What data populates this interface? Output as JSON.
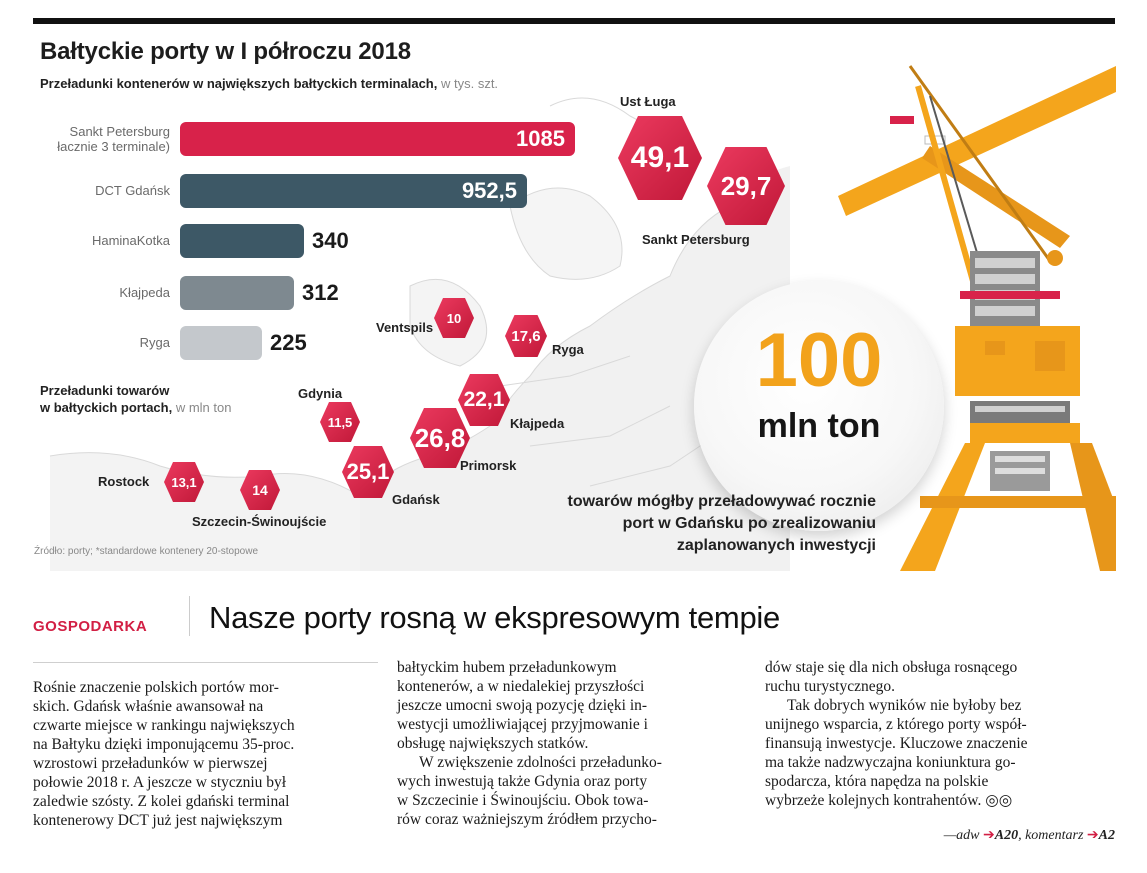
{
  "infographic": {
    "title": "Bałtyckie porty w I półroczu 2018",
    "subtitle": "Przeładunki kontenerów w największych bałtyckich terminalach,",
    "subtitle_unit": "w tys. szt.",
    "section2_line1": "Przeładunki towarów",
    "section2_line2": "w bałtyckich portach,",
    "section2_unit": "w mln ton",
    "source": "Źródło: porty; *standardowe kontenery 20-stopowe",
    "big_number": "100",
    "big_unit": "mln ton",
    "caption_lines": [
      "towarów mógłby przeładowywać rocznie",
      "port w Gdańsku po zrealizowaniu",
      "zaplanowanych inwestycji"
    ]
  },
  "chart_data": [
    {
      "type": "bar",
      "title": "Przeładunki kontenerów w największych bałtyckich terminalach",
      "unit": "w tys. szt.",
      "orientation": "horizontal",
      "categories": [
        "Sankt Petersburg (łącznie 3 terminale)",
        "DCT Gdańsk",
        "HaminaKotka",
        "Kłajpeda",
        "Ryga"
      ],
      "label_lines": [
        [
          "Sankt Petersburg",
          "łacznie 3 terminale)"
        ],
        [
          "DCT Gdańsk"
        ],
        [
          "HaminaKotka"
        ],
        [
          "Kłajpeda"
        ],
        [
          "Ryga"
        ]
      ],
      "values": [
        1085,
        952.5,
        340,
        312,
        225
      ],
      "value_labels": [
        "1085",
        "952,5",
        "340",
        "312",
        "225"
      ],
      "colors": [
        "#d8224a",
        "#3d5866",
        "#3d5866",
        "#7e8990",
        "#c4c8cc"
      ]
    },
    {
      "type": "map",
      "title": "Przeładunki towarów w bałtyckich portach",
      "unit": "w mln ton",
      "ports": [
        {
          "name": "Ust Ługa",
          "value": "49,1"
        },
        {
          "name": "Sankt Petersburg",
          "value": "29,7"
        },
        {
          "name": "Ventspils",
          "value": "10"
        },
        {
          "name": "Ryga",
          "value": "17,6"
        },
        {
          "name": "Kłajpeda",
          "value": "22,1"
        },
        {
          "name": "Primorsk",
          "value": "26,8"
        },
        {
          "name": "Gdynia",
          "value": "11,5"
        },
        {
          "name": "Gdańsk",
          "value": "25,1"
        },
        {
          "name": "Rostock",
          "value": "13,1"
        },
        {
          "name": "Szczecin-Świnoujście",
          "value": "14"
        }
      ]
    }
  ],
  "article": {
    "section": "GOSPODARKA",
    "headline": "Nasze porty rosną w ekspresowym tempie",
    "col1": [
      "Rośnie znaczenie polskich portów mor-",
      "skich. Gdańsk właśnie awansował na",
      "czwarte miejsce w rankingu największych",
      "na Bałtyku dzięki imponującemu 35-proc.",
      "wzrostowi przeładunków w pierwszej",
      "połowie 2018 r. A jeszcze w styczniu był",
      "zaledwie szósty. Z kolei gdański terminal",
      "kontenerowy DCT już jest największym"
    ],
    "col2a": [
      "bałtyckim hubem przeładunkowym",
      "kontenerów, a w niedalekiej przyszłości",
      "jeszcze umocni swoją pozycję dzięki in-",
      "westycji umożliwiającej przyjmowanie i",
      "obsługę największych statków."
    ],
    "col2b": [
      "W zwiększenie zdolności przeładunko-",
      "wych inwestują także Gdynia oraz porty",
      "w Szczecinie i Świnoujściu. Obok towa-",
      "rów coraz ważniejszym źródłem przycho-"
    ],
    "col3a": [
      "dów staje się dla nich obsługa rosnącego",
      "ruchu turystycznego."
    ],
    "col3b": [
      "Tak dobrych wyników nie byłoby bez",
      "unijnego wsparcia, z którego porty współ-",
      "finansują inwestycje. Kluczowe znaczenie",
      "ma także nadzwyczajna koniunktura go-",
      "spodarcza, która napędza na polskie",
      "wybrzeże kolejnych kontrahentów. ◎◎"
    ],
    "sig_author": "—adw",
    "sig_ref1": "A20",
    "sig_comment": ", komentarz",
    "sig_ref2": "A2",
    "arrow": "➔"
  }
}
